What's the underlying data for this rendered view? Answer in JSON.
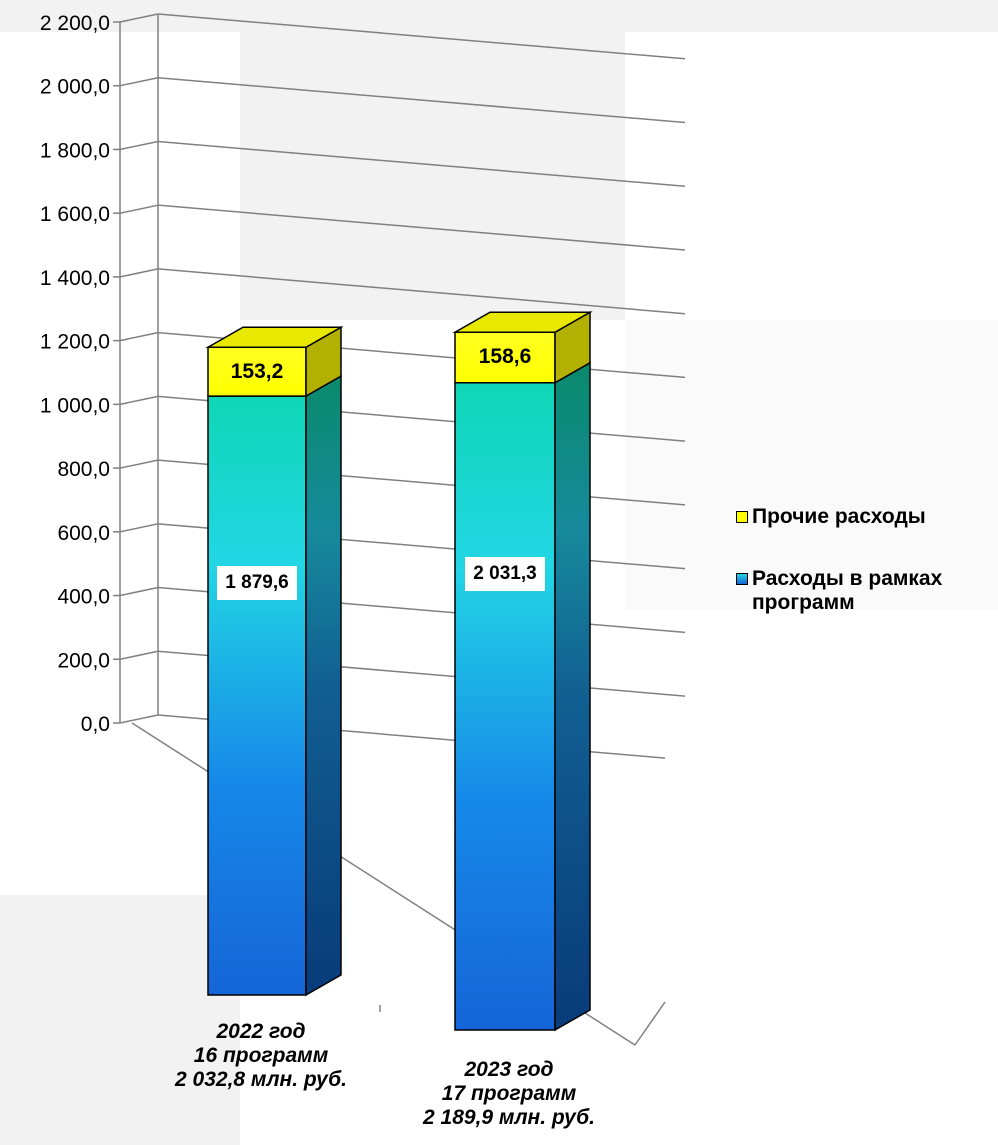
{
  "chart_data": {
    "type": "bar",
    "stacked": true,
    "three_d": true,
    "categories": [
      [
        "2022 год",
        "16 программ",
        "2 032,8 млн. руб."
      ],
      [
        "2023 год",
        "17 программ",
        "2 189,9 млн. руб."
      ]
    ],
    "series": [
      {
        "name": "Расходы в рамках программ",
        "values": [
          1879.6,
          2031.3
        ],
        "labels": [
          "1 879,6",
          "2 031,3"
        ],
        "color": "#1aa4e0"
      },
      {
        "name": "Прочие расходы",
        "values": [
          153.2,
          158.6
        ],
        "labels": [
          "153,2",
          "158,6"
        ],
        "color": "#ffff00"
      }
    ],
    "ylim": [
      0,
      2200
    ],
    "yticks": [
      "0,0",
      "200,0",
      "400,0",
      "600,0",
      "800,0",
      "1 000,0",
      "1 200,0",
      "1 400,0",
      "1 600,0",
      "1 800,0",
      "2 000,0",
      "2 200,0"
    ],
    "grid": true,
    "legend": {
      "position": "right",
      "entries": [
        {
          "label": "Прочие расходы",
          "color": "#ffff00"
        },
        {
          "label": "Расходы в рамках программ",
          "color": "#1aa4e0"
        }
      ]
    }
  }
}
